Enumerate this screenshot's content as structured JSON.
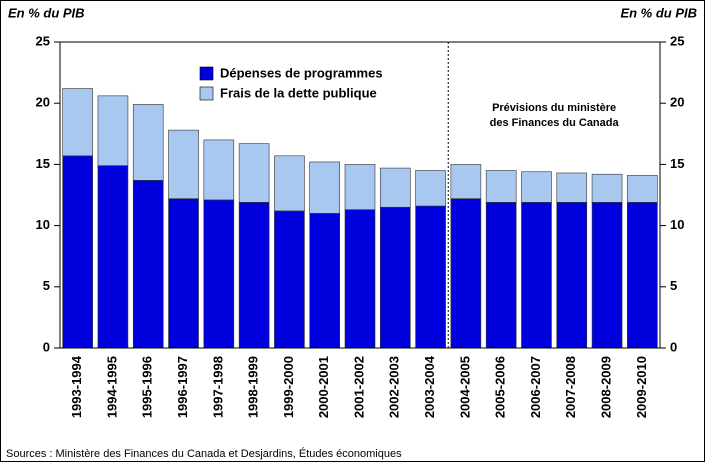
{
  "chart_data": {
    "type": "stacked_bar",
    "ylabel": "En % du PIB",
    "y2label": "En % du PIB",
    "categories": [
      "1993-1994",
      "1994-1995",
      "1995-1996",
      "1996-1997",
      "1997-1998",
      "1998-1999",
      "1999-2000",
      "2000-2001",
      "2001-2002",
      "2002-2003",
      "2003-2004",
      "2004-2005",
      "2005-2006",
      "2006-2007",
      "2007-2008",
      "2008-2009",
      "2009-2010"
    ],
    "series": [
      {
        "name": "Dépenses de programmes",
        "color": "#0000dd",
        "values": [
          15.7,
          14.9,
          13.7,
          12.2,
          12.1,
          11.9,
          11.2,
          11.0,
          11.3,
          11.5,
          11.6,
          12.2,
          11.9,
          11.9,
          11.9,
          11.9,
          11.9
        ]
      },
      {
        "name": "Frais de la dette publique",
        "color": "#a8c8f0",
        "values": [
          5.5,
          5.7,
          6.2,
          5.6,
          4.9,
          4.8,
          4.5,
          4.2,
          3.7,
          3.2,
          2.9,
          2.8,
          2.6,
          2.5,
          2.4,
          2.3,
          2.2
        ]
      }
    ],
    "ylim": [
      0,
      25
    ],
    "yticks": [
      0,
      5,
      10,
      15,
      20,
      25
    ],
    "y2lim": [
      0,
      25
    ],
    "y2ticks": [
      0,
      5,
      10,
      15,
      20,
      25
    ],
    "forecast_from": "2004-2005",
    "annotation": [
      "Prévisions du ministère",
      "des Finances du Canada"
    ],
    "source": "Sources : Ministère des Finances du Canada et Desjardins, Études économiques"
  }
}
